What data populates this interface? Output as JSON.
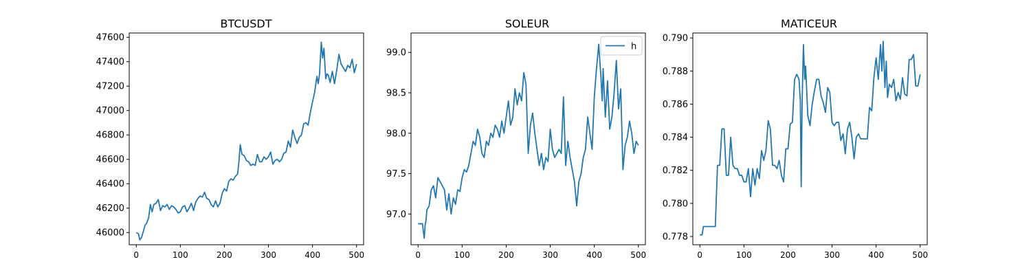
{
  "figure": {
    "panels": [
      {
        "title": "BTCUSDT"
      },
      {
        "title": "SOLEUR"
      },
      {
        "title": "MATICEUR"
      }
    ]
  },
  "colors": {
    "line": "#1f77b4",
    "axes": "#000000",
    "background": "#ffffff"
  },
  "chart_data": [
    {
      "type": "line",
      "title": "BTCUSDT",
      "xlabel": "",
      "ylabel": "",
      "xlim": [
        -16,
        516
      ],
      "ylim": [
        45900,
        47635
      ],
      "xticks": [
        0,
        100,
        200,
        300,
        400,
        500
      ],
      "yticks": [
        46000,
        46200,
        46400,
        46600,
        46800,
        47000,
        47200,
        47400,
        47600
      ],
      "ytick_labels": [
        "46000",
        "46200",
        "46400",
        "46600",
        "46800",
        "47000",
        "47200",
        "47400",
        "47600"
      ],
      "grid": false,
      "legend": null,
      "series": [
        {
          "x": [
            0,
            5,
            8,
            12,
            16,
            20,
            24,
            28,
            32,
            36,
            40,
            45,
            50,
            55,
            60,
            65,
            70,
            75,
            80,
            85,
            90,
            95,
            100,
            105,
            110,
            115,
            120,
            125,
            130,
            135,
            140,
            145,
            150,
            155,
            160,
            165,
            170,
            175,
            180,
            185,
            190,
            195,
            200,
            205,
            210,
            215,
            220,
            225,
            230,
            233,
            236,
            240,
            245,
            250,
            255,
            260,
            265,
            270,
            275,
            280,
            285,
            290,
            295,
            300,
            305,
            310,
            315,
            320,
            325,
            330,
            335,
            340,
            345,
            350,
            355,
            360,
            365,
            370,
            375,
            380,
            385,
            390,
            395,
            400,
            405,
            410,
            413,
            416,
            420,
            423,
            426,
            430,
            433,
            436,
            440,
            445,
            450,
            455,
            460,
            465,
            470,
            475,
            480,
            485,
            490,
            495,
            500
          ],
          "y": [
            46000,
            45990,
            45940,
            45960,
            46010,
            46060,
            46080,
            46120,
            46230,
            46170,
            46230,
            46240,
            46270,
            46180,
            46220,
            46210,
            46230,
            46190,
            46220,
            46210,
            46190,
            46160,
            46170,
            46210,
            46220,
            46170,
            46200,
            46240,
            46180,
            46250,
            46280,
            46300,
            46290,
            46330,
            46280,
            46270,
            46230,
            46210,
            46260,
            46210,
            46240,
            46320,
            46360,
            46340,
            46420,
            46440,
            46430,
            46460,
            46480,
            46580,
            46720,
            46640,
            46630,
            46590,
            46580,
            46550,
            46560,
            46550,
            46640,
            46580,
            46580,
            46620,
            46600,
            46620,
            46660,
            46560,
            46590,
            46600,
            46580,
            46600,
            46650,
            46660,
            46750,
            46700,
            46840,
            46780,
            46730,
            46780,
            46800,
            46890,
            46900,
            46880,
            46980,
            47070,
            47150,
            47280,
            47220,
            47300,
            47560,
            47430,
            47510,
            47260,
            47300,
            47290,
            47230,
            47320,
            47220,
            47330,
            47460,
            47380,
            47350,
            47320,
            47370,
            47350,
            47420,
            47310,
            47380
          ]
        }
      ]
    },
    {
      "type": "line",
      "title": "SOLEUR",
      "xlabel": "",
      "ylabel": "",
      "xlim": [
        -16,
        516
      ],
      "ylim": [
        96.62,
        99.24
      ],
      "xticks": [
        0,
        100,
        200,
        300,
        400,
        500
      ],
      "yticks": [
        97.0,
        97.5,
        98.0,
        98.5,
        99.0
      ],
      "ytick_labels": [
        "97.0",
        "97.5",
        "98.0",
        "98.5",
        "99.0"
      ],
      "grid": false,
      "legend": {
        "labels": [
          "h"
        ],
        "position": "upper right"
      },
      "series": [
        {
          "name": "h",
          "x": [
            0,
            5,
            10,
            12,
            14,
            16,
            18,
            20,
            25,
            30,
            35,
            40,
            45,
            50,
            55,
            60,
            65,
            70,
            75,
            80,
            85,
            90,
            95,
            100,
            105,
            110,
            115,
            120,
            125,
            130,
            135,
            140,
            145,
            150,
            155,
            160,
            165,
            170,
            175,
            180,
            185,
            190,
            195,
            200,
            205,
            210,
            215,
            220,
            225,
            230,
            235,
            240,
            245,
            250,
            255,
            260,
            265,
            270,
            275,
            280,
            285,
            290,
            295,
            300,
            305,
            310,
            315,
            320,
            325,
            330,
            335,
            340,
            345,
            350,
            355,
            360,
            365,
            370,
            375,
            380,
            385,
            390,
            395,
            400,
            405,
            410,
            415,
            418,
            420,
            425,
            430,
            435,
            440,
            445,
            450,
            455,
            460,
            465,
            470,
            475,
            480,
            485,
            490,
            495,
            500
          ],
          "y": [
            96.88,
            96.88,
            96.88,
            96.78,
            96.7,
            96.86,
            96.92,
            97.05,
            97.1,
            97.3,
            97.35,
            97.2,
            97.45,
            97.4,
            97.35,
            97.3,
            97.05,
            97.25,
            97.0,
            97.2,
            97.12,
            97.3,
            97.28,
            97.45,
            97.55,
            97.52,
            97.6,
            97.75,
            97.9,
            97.85,
            98.05,
            97.95,
            97.75,
            97.7,
            97.9,
            97.85,
            98.0,
            97.95,
            98.1,
            98.05,
            97.95,
            98.15,
            98.0,
            98.2,
            98.4,
            98.1,
            98.2,
            98.55,
            98.35,
            98.5,
            98.4,
            98.75,
            98.6,
            97.75,
            98.1,
            98.25,
            98.0,
            97.8,
            97.6,
            97.75,
            97.55,
            97.7,
            97.65,
            98.05,
            97.8,
            97.7,
            97.75,
            97.8,
            97.75,
            98.45,
            97.6,
            97.9,
            97.7,
            97.55,
            97.4,
            97.1,
            97.4,
            97.5,
            97.7,
            97.8,
            98.2,
            98.0,
            97.8,
            98.45,
            98.8,
            99.1,
            98.7,
            98.4,
            98.8,
            98.2,
            98.65,
            98.05,
            98.2,
            98.5,
            98.9,
            98.3,
            98.55,
            97.55,
            97.85,
            97.95,
            98.15,
            98.0,
            97.75,
            97.9,
            97.85
          ]
        }
      ]
    },
    {
      "type": "line",
      "title": "MATICEUR",
      "xlabel": "",
      "ylabel": "",
      "xlim": [
        -16,
        516
      ],
      "ylim": [
        0.7775,
        0.7903
      ],
      "xticks": [
        0,
        100,
        200,
        300,
        400,
        500
      ],
      "yticks": [
        0.778,
        0.78,
        0.782,
        0.784,
        0.786,
        0.788,
        0.79
      ],
      "ytick_labels": [
        "0.778",
        "0.780",
        "0.782",
        "0.784",
        "0.786",
        "0.788",
        "0.790"
      ],
      "grid": false,
      "legend": null,
      "series": [
        {
          "x": [
            0,
            5,
            8,
            15,
            25,
            35,
            40,
            45,
            50,
            55,
            60,
            65,
            70,
            75,
            80,
            85,
            90,
            95,
            100,
            105,
            110,
            115,
            120,
            125,
            130,
            135,
            140,
            145,
            150,
            155,
            160,
            165,
            170,
            175,
            180,
            185,
            190,
            195,
            200,
            205,
            210,
            215,
            220,
            225,
            228,
            230,
            232,
            235,
            238,
            240,
            245,
            250,
            255,
            260,
            265,
            270,
            275,
            280,
            285,
            290,
            295,
            300,
            305,
            310,
            315,
            320,
            325,
            330,
            335,
            340,
            345,
            350,
            355,
            360,
            365,
            370,
            375,
            380,
            385,
            390,
            395,
            400,
            405,
            410,
            413,
            416,
            420,
            423,
            426,
            430,
            435,
            440,
            445,
            450,
            455,
            460,
            465,
            470,
            475,
            480,
            485,
            490,
            495,
            500
          ],
          "y": [
            0.7781,
            0.7781,
            0.7786,
            0.7786,
            0.7786,
            0.7786,
            0.7823,
            0.7823,
            0.7845,
            0.7845,
            0.7817,
            0.7817,
            0.784,
            0.7823,
            0.7821,
            0.7821,
            0.7817,
            0.7817,
            0.7813,
            0.7813,
            0.7821,
            0.7804,
            0.7821,
            0.7811,
            0.7821,
            0.7815,
            0.7832,
            0.7826,
            0.7832,
            0.785,
            0.7845,
            0.7823,
            0.7823,
            0.7821,
            0.7826,
            0.7817,
            0.7813,
            0.7833,
            0.7833,
            0.7848,
            0.7849,
            0.7875,
            0.7878,
            0.7875,
            0.7862,
            0.781,
            0.786,
            0.7896,
            0.7875,
            0.7883,
            0.7853,
            0.7847,
            0.786,
            0.7868,
            0.7875,
            0.7875,
            0.7865,
            0.7861,
            0.7855,
            0.787,
            0.7867,
            0.7849,
            0.7847,
            0.7849,
            0.7849,
            0.7838,
            0.7842,
            0.783,
            0.7845,
            0.7849,
            0.784,
            0.7827,
            0.784,
            0.7842,
            0.7839,
            0.7839,
            0.7839,
            0.7839,
            0.7858,
            0.7856,
            0.7876,
            0.7888,
            0.7875,
            0.7896,
            0.788,
            0.7898,
            0.787,
            0.7886,
            0.7864,
            0.7872,
            0.787,
            0.7875,
            0.7862,
            0.7867,
            0.7863,
            0.7876,
            0.7866,
            0.7865,
            0.7887,
            0.7887,
            0.789,
            0.7871,
            0.7871,
            0.7878
          ]
        }
      ]
    }
  ]
}
